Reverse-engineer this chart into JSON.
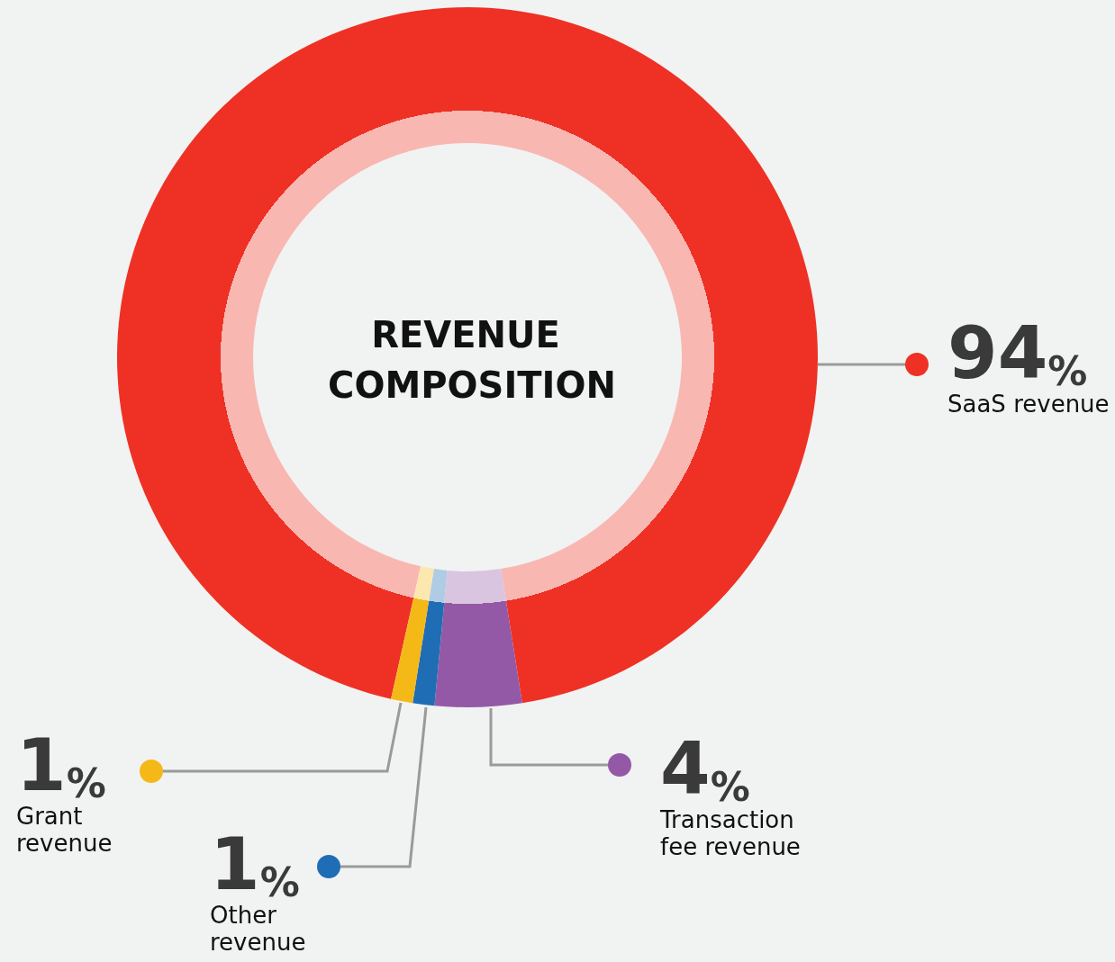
{
  "chart_data": {
    "type": "donut",
    "title": "REVENUE COMPOSITION",
    "categories": [
      "SaaS revenue",
      "Transaction fee revenue",
      "Other revenue",
      "Grant revenue"
    ],
    "values": [
      94,
      4,
      1,
      1
    ],
    "colors": [
      "#ee3124",
      "#9459a6",
      "#1e6db5",
      "#f5b917"
    ],
    "value_labels": [
      "94%",
      "4%",
      "1%",
      "1%"
    ]
  }
}
